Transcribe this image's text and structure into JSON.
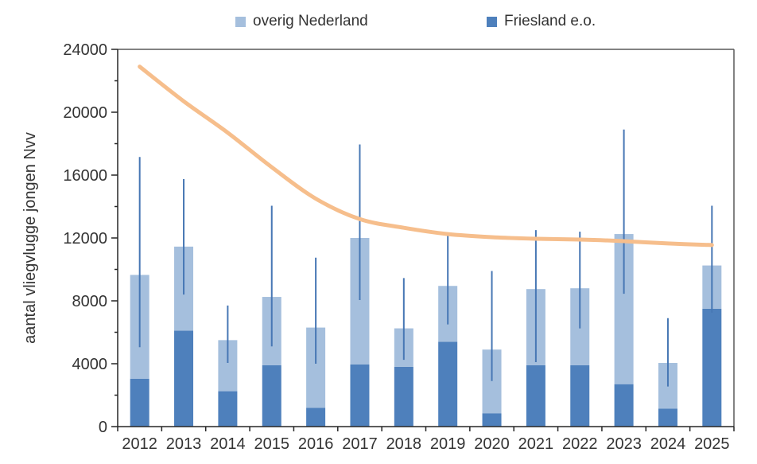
{
  "chart_data": {
    "type": "bar",
    "subtype": "stacked-bars-with-error-bars-and-trend-line",
    "title": "",
    "xlabel": "",
    "ylabel": "aantal vliegvlugge jongen Nvv",
    "ylim": [
      0,
      24000
    ],
    "ytick_step": 4000,
    "yminor_step": 2000,
    "grid": false,
    "legend_position": "top",
    "categories": [
      "2012",
      "2013",
      "2014",
      "2015",
      "2016",
      "2017",
      "2018",
      "2019",
      "2020",
      "2021",
      "2022",
      "2023",
      "2024",
      "2025"
    ],
    "series": [
      {
        "name": "Friesland e.o.",
        "color": "#4e80bc",
        "stack_order": "bottom",
        "values": [
          3050,
          6100,
          2250,
          3900,
          1200,
          3950,
          3800,
          5400,
          850,
          3900,
          3900,
          2700,
          1150,
          7500
        ]
      },
      {
        "name": "overig Nederland",
        "color": "#a5bfdd",
        "stack_order": "top",
        "values": [
          6600,
          5350,
          3250,
          4350,
          5100,
          8050,
          2450,
          3550,
          4050,
          4850,
          4900,
          9550,
          2900,
          2750
        ]
      }
    ],
    "stack_totals": [
      9650,
      11450,
      5500,
      8250,
      6300,
      12000,
      6250,
      8950,
      4900,
      8750,
      8800,
      12250,
      4050,
      10250
    ],
    "error_bars": {
      "color": "#4777b4",
      "low": [
        5050,
        8400,
        4050,
        5100,
        4000,
        8050,
        4250,
        6500,
        2900,
        4100,
        6250,
        8450,
        2550,
        7250
      ],
      "high": [
        17150,
        15750,
        7700,
        14050,
        10750,
        17950,
        9450,
        12150,
        9900,
        12500,
        12400,
        18900,
        6900,
        14050
      ]
    },
    "trend_line": {
      "name": "trend",
      "color": "#f6be8c",
      "values": [
        22900,
        20700,
        18700,
        16500,
        14500,
        13200,
        12650,
        12250,
        12050,
        11950,
        11900,
        11800,
        11650,
        11550
      ]
    },
    "legend": [
      {
        "label": "overig Nederland",
        "color": "#a5bfdd"
      },
      {
        "label": "Friesland e.o.",
        "color": "#4e80bc"
      }
    ],
    "yticks": [
      "0",
      "4000",
      "8000",
      "12000",
      "16000",
      "20000",
      "24000"
    ],
    "colors": {
      "axis": "#262626",
      "border": "#595959",
      "text": "#333333"
    }
  }
}
